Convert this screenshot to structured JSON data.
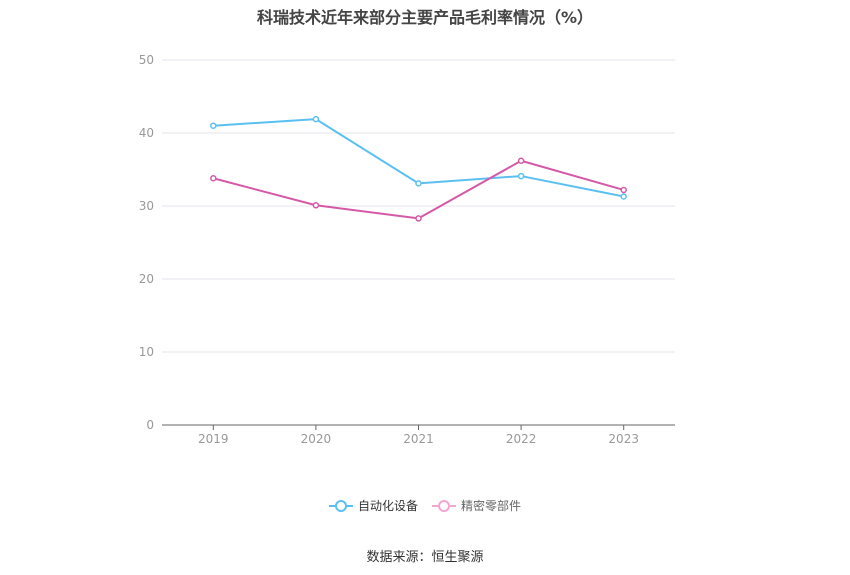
{
  "chart_data": {
    "type": "line",
    "title": "科瑞技术近年来部分主要产品毛利率情况（%）",
    "categories": [
      "2019",
      "2020",
      "2021",
      "2022",
      "2023"
    ],
    "series": [
      {
        "name": "自动化设备",
        "values": [
          41.0,
          41.9,
          33.1,
          34.1,
          31.3
        ],
        "color": "#5bc0f0"
      },
      {
        "name": "精密零部件",
        "values": [
          33.8,
          30.1,
          28.3,
          36.2,
          32.2
        ],
        "color": "#d45aa8"
      }
    ],
    "ylim": [
      0,
      50
    ],
    "yticks": [
      "0",
      "10",
      "20",
      "30",
      "40",
      "50"
    ],
    "grid": true,
    "legend": "bottom-center",
    "xlabel": "",
    "ylabel": ""
  },
  "source_text": "数据来源：恒生聚源"
}
